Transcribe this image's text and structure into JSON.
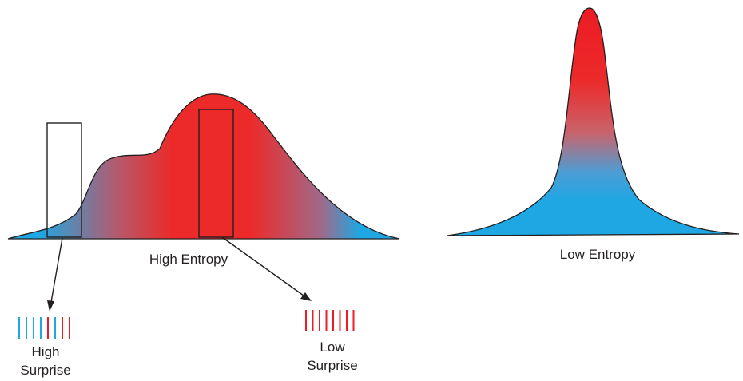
{
  "labels": {
    "high_entropy": "High Entropy",
    "low_entropy": "Low Entropy",
    "high_surprise_line1": "High",
    "high_surprise_line2": "Surprise",
    "low_surprise_line1": "Low",
    "low_surprise_line2": "Surprise"
  },
  "colors": {
    "red": "#ec1c24",
    "blue": "#1ea7e3",
    "outline": "#231f20"
  },
  "high_surprise_ticks": [
    "blue",
    "blue",
    "blue",
    "blue",
    "red",
    "blue",
    "red",
    "red"
  ],
  "low_surprise_ticks": [
    "red",
    "red",
    "red",
    "red",
    "red",
    "red",
    "red",
    "red"
  ]
}
